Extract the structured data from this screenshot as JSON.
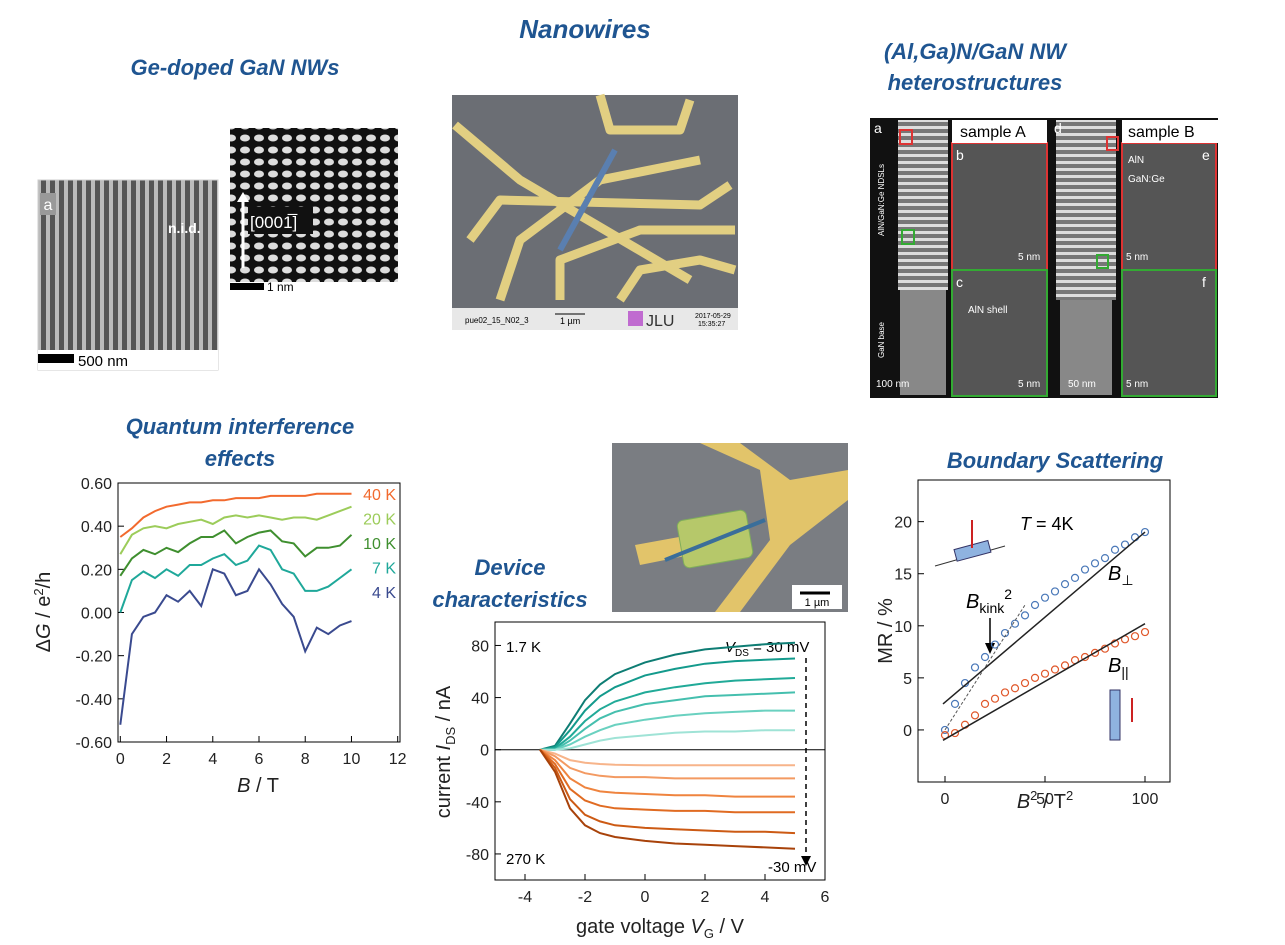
{
  "title": "Nanowires",
  "panels": {
    "ge_doped": "Ge-doped GaN NWs",
    "heterostructures": [
      "(Al,Ga)N/GaN NW",
      "heterostructures"
    ],
    "quantum": [
      "Quantum interference",
      "effects"
    ],
    "device": [
      "Device",
      "characteristics"
    ],
    "boundary": "Boundary Scattering"
  },
  "images": {
    "sem": {
      "label": "a",
      "region": "n.i.d.",
      "scale": "500 nm"
    },
    "lattice": {
      "direction": "[0001̅]",
      "scale": "1 nm"
    },
    "device_sem": {
      "id": "pue02_15_N02_3",
      "scale": "1 µm",
      "logo": "JLU",
      "timestamp": [
        "2017-05-29",
        "15:35:27"
      ]
    },
    "tem": {
      "letters": [
        "a",
        "b",
        "c",
        "d",
        "e",
        "f"
      ],
      "samples": [
        "sample A",
        "sample B"
      ],
      "layers": [
        "AlN",
        "GaN:Ge"
      ],
      "shell": "AlN shell",
      "side": [
        "AlN/GaN:Ge NDSLs",
        "GaN base"
      ],
      "scales": [
        "100 nm",
        "5 nm",
        "5 nm",
        "50 nm",
        "5 nm",
        "5 nm"
      ]
    },
    "inset": {
      "scale": "1 µm"
    }
  },
  "chart_data": [
    {
      "type": "line",
      "ylabel": [
        "Δ",
        "G",
        " / e",
        "2",
        "/h"
      ],
      "xlabel": [
        "B",
        " / T"
      ],
      "x": [
        0,
        0.5,
        1,
        1.5,
        2,
        2.5,
        3,
        3.5,
        4,
        4.5,
        5,
        5.5,
        6,
        6.5,
        7,
        7.5,
        8,
        8.5,
        9,
        9.5,
        10
      ],
      "series": [
        {
          "name": "40 K",
          "color": "#f26a2e",
          "values": [
            0.35,
            0.39,
            0.44,
            0.47,
            0.49,
            0.5,
            0.51,
            0.51,
            0.52,
            0.52,
            0.53,
            0.53,
            0.53,
            0.54,
            0.54,
            0.54,
            0.54,
            0.55,
            0.55,
            0.55,
            0.55
          ]
        },
        {
          "name": "20 K",
          "color": "#9ccc5a",
          "values": [
            0.27,
            0.36,
            0.39,
            0.4,
            0.39,
            0.41,
            0.42,
            0.43,
            0.41,
            0.44,
            0.45,
            0.44,
            0.45,
            0.44,
            0.43,
            0.44,
            0.44,
            0.43,
            0.45,
            0.47,
            0.49
          ]
        },
        {
          "name": "10 K",
          "color": "#3f8f2f",
          "values": [
            0.17,
            0.25,
            0.29,
            0.27,
            0.3,
            0.28,
            0.32,
            0.35,
            0.35,
            0.38,
            0.32,
            0.35,
            0.37,
            0.38,
            0.33,
            0.32,
            0.26,
            0.3,
            0.3,
            0.31,
            0.36
          ]
        },
        {
          "name": "7 K",
          "color": "#1fa89a",
          "values": [
            0.0,
            0.15,
            0.19,
            0.16,
            0.2,
            0.17,
            0.22,
            0.22,
            0.25,
            0.27,
            0.22,
            0.24,
            0.31,
            0.29,
            0.2,
            0.18,
            0.1,
            0.1,
            0.12,
            0.16,
            0.2
          ]
        },
        {
          "name": "4 K",
          "color": "#3a4a8f",
          "values": [
            -0.52,
            -0.1,
            -0.02,
            0.0,
            0.08,
            0.05,
            0.1,
            0.03,
            0.2,
            0.18,
            0.08,
            0.1,
            0.2,
            0.13,
            0.04,
            -0.02,
            -0.18,
            -0.07,
            -0.1,
            -0.06,
            -0.04
          ]
        }
      ],
      "legend": "top-right",
      "xlim": [
        -0.1,
        12.1
      ],
      "xticks": [
        0,
        2,
        4,
        6,
        8,
        10,
        12
      ],
      "ylim": [
        -0.6,
        0.6
      ],
      "yticks": [
        {
          "value": 0.6,
          "label": "0.60"
        },
        {
          "value": 0.4,
          "label": "0.40"
        },
        {
          "value": 0.2,
          "label": "0.20"
        },
        {
          "value": 0,
          "label": "0.00"
        },
        {
          "value": -0.2,
          "label": "-0.20"
        },
        {
          "value": -0.4,
          "label": "-0.40"
        },
        {
          "value": -0.6,
          "label": "-0.60"
        }
      ]
    },
    {
      "type": "line",
      "ylabel": [
        "current ",
        "I",
        "DS",
        " / nA"
      ],
      "xlabel": [
        "gate voltage ",
        "V",
        "G",
        " / V"
      ],
      "annotations": {
        "top": "1.7 K",
        "bottom": "270 K",
        "vds": [
          "V",
          "DS",
          " = 30 mV"
        ],
        "vds_low": "-30 mV"
      },
      "zero_line": true,
      "x": [
        -3.5,
        -3,
        -2.5,
        -2,
        -1.5,
        -1,
        0,
        1,
        2,
        3,
        4,
        5
      ],
      "series": [
        {
          "color": "#0e7d74",
          "values": [
            0,
            3,
            20,
            38,
            50,
            58,
            67,
            73,
            77,
            79,
            81,
            82
          ]
        },
        {
          "color": "#139a8c",
          "values": [
            0,
            2,
            15,
            30,
            41,
            48,
            57,
            62,
            66,
            68,
            69,
            70
          ]
        },
        {
          "color": "#21aa98",
          "values": [
            0,
            1,
            10,
            22,
            31,
            37,
            44,
            48,
            51,
            53,
            54,
            55
          ]
        },
        {
          "color": "#45bfae",
          "values": [
            0,
            0,
            7,
            16,
            24,
            29,
            35,
            38,
            41,
            42,
            43,
            44
          ]
        },
        {
          "color": "#6ad1c0",
          "values": [
            0,
            0,
            4,
            10,
            15,
            19,
            23,
            26,
            28,
            29,
            30,
            30
          ]
        },
        {
          "color": "#9fe3d6",
          "values": [
            0,
            0,
            1,
            4,
            7,
            9,
            11,
            13,
            14,
            14,
            15,
            15
          ]
        },
        {
          "color": "#f7b48a",
          "values": [
            0,
            -3,
            -8,
            -10,
            -11,
            -11.5,
            -12,
            -12,
            -12,
            -12,
            -12,
            -12
          ]
        },
        {
          "color": "#f39a62",
          "values": [
            0,
            -5,
            -14,
            -18,
            -20,
            -21,
            -21,
            -22,
            -22,
            -22,
            -22,
            -22
          ]
        },
        {
          "color": "#ef843f",
          "values": [
            0,
            -8,
            -22,
            -29,
            -32,
            -33,
            -34,
            -35,
            -35,
            -36,
            -36,
            -36
          ]
        },
        {
          "color": "#e06b22",
          "values": [
            0,
            -11,
            -30,
            -39,
            -43,
            -45,
            -46,
            -47,
            -47,
            -48,
            -48,
            -48
          ]
        },
        {
          "color": "#cc5a14",
          "values": [
            0,
            -14,
            -38,
            -50,
            -55,
            -58,
            -60,
            -61,
            -62,
            -63,
            -63,
            -64
          ]
        },
        {
          "color": "#a8420a",
          "values": [
            0,
            -17,
            -45,
            -58,
            -64,
            -67,
            -70,
            -72,
            -73,
            -74,
            -75,
            -76
          ]
        }
      ],
      "xlim": [
        -5,
        6
      ],
      "xticks": [
        -4,
        -2,
        0,
        2,
        4,
        6
      ],
      "ylim": [
        -100,
        98
      ],
      "yticks": [
        80,
        40,
        0,
        -40,
        -80
      ]
    },
    {
      "type": "scatter",
      "ylabel": "MR / %",
      "xlabel": [
        "B",
        "2",
        " / T",
        "2"
      ],
      "annotations": {
        "temp": [
          "T",
          " = 4K"
        ],
        "perp": [
          "B",
          "⊥"
        ],
        "par": [
          "B",
          "||"
        ],
        "kink": [
          "B",
          "kink",
          "2"
        ]
      },
      "x": [
        0,
        5,
        10,
        15,
        20,
        25,
        30,
        35,
        40,
        45,
        50,
        55,
        60,
        65,
        70,
        75,
        80,
        85,
        90,
        95,
        100
      ],
      "series": [
        {
          "color": "#4a78b8",
          "values": [
            0,
            2.5,
            4.5,
            6,
            7,
            8.2,
            9.3,
            10.2,
            11,
            12,
            12.7,
            13.3,
            14,
            14.6,
            15.4,
            16,
            16.5,
            17.3,
            17.8,
            18.5,
            19
          ]
        },
        {
          "color": "#e0572a",
          "values": [
            -0.5,
            -0.3,
            0.5,
            1.4,
            2.5,
            3,
            3.6,
            4,
            4.5,
            5,
            5.4,
            5.8,
            6.2,
            6.7,
            7,
            7.4,
            7.8,
            8.3,
            8.7,
            9,
            9.4
          ]
        }
      ],
      "fits": [
        {
          "color": "#222222",
          "x": [
            -1,
            100
          ],
          "values": [
            2.5,
            19
          ]
        },
        {
          "color": "#222222",
          "x": [
            -1,
            100
          ],
          "values": [
            -1,
            10.2
          ]
        },
        {
          "color": "#555555",
          "x": [
            0,
            40
          ],
          "values": [
            0,
            12
          ]
        }
      ],
      "xlim": [
        -13.5,
        112.5
      ],
      "xticks": [
        0,
        50,
        100
      ],
      "ylim": [
        -5,
        24
      ],
      "yticks": [
        0,
        5,
        10,
        15,
        20
      ]
    }
  ]
}
